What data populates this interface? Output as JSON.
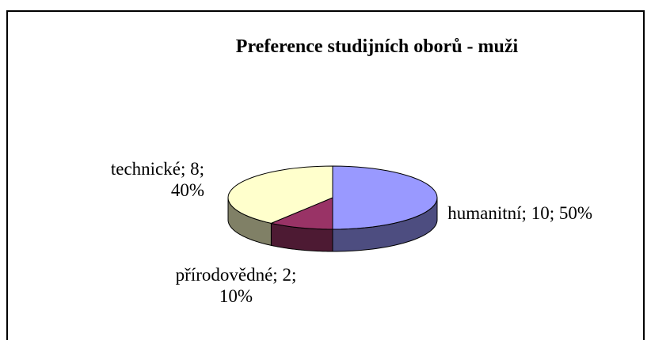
{
  "chart_data": {
    "type": "pie3d",
    "title": "Preference studijních oborů - muži",
    "values": [
      10,
      2,
      8
    ],
    "value_labels": [
      "humanitní; 10; 50%",
      "přírodovědné; 2; 10%",
      "technické; 8; 40%"
    ],
    "colors": [
      "#9999ff",
      "#993366",
      "#ffffcc"
    ]
  }
}
